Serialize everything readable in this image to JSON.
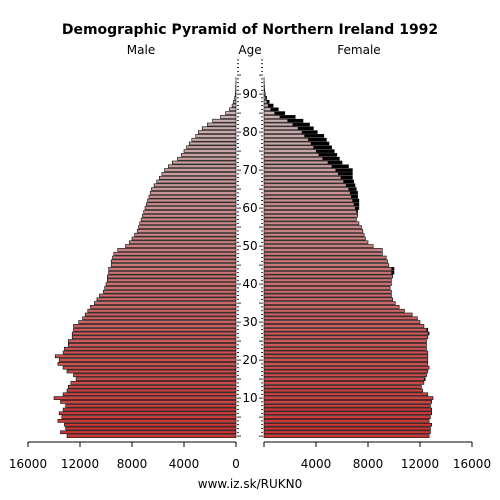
{
  "chart_data": {
    "type": "bar",
    "subtype": "population-pyramid",
    "title": "Demographic Pyramid of Northern Ireland 1992",
    "left_label": "Male",
    "center_label": "Age",
    "right_label": "Female",
    "footer": "www.iz.sk/RUKN0",
    "x_max": 16000,
    "x_ticks": [
      "16000",
      "12000",
      "8000",
      "4000",
      "0",
      "4000",
      "8000",
      "12000",
      "16000"
    ],
    "age_ticks": [
      "10",
      "20",
      "30",
      "40",
      "50",
      "60",
      "70",
      "80",
      "90"
    ],
    "ages": [
      0,
      1,
      2,
      3,
      4,
      5,
      6,
      7,
      8,
      9,
      10,
      11,
      12,
      13,
      14,
      15,
      16,
      17,
      18,
      19,
      20,
      21,
      22,
      23,
      24,
      25,
      26,
      27,
      28,
      29,
      30,
      31,
      32,
      33,
      34,
      35,
      36,
      37,
      38,
      39,
      40,
      41,
      42,
      43,
      44,
      45,
      46,
      47,
      48,
      49,
      50,
      51,
      52,
      53,
      54,
      55,
      56,
      57,
      58,
      59,
      60,
      61,
      62,
      63,
      64,
      65,
      66,
      67,
      68,
      69,
      70,
      71,
      72,
      73,
      74,
      75,
      76,
      77,
      78,
      79,
      80,
      81,
      82,
      83,
      84,
      85,
      86,
      87,
      88,
      89,
      90,
      91,
      92,
      93,
      94,
      95,
      96,
      97,
      98,
      99
    ],
    "series": [
      {
        "name": "Male",
        "values": [
          13000,
          13500,
          13100,
          13200,
          13700,
          13400,
          13600,
          13300,
          13100,
          13500,
          14000,
          13300,
          13000,
          12900,
          12700,
          12300,
          12500,
          13000,
          13300,
          13700,
          13600,
          13900,
          13300,
          13200,
          12900,
          12900,
          12600,
          12600,
          12500,
          12500,
          12100,
          11800,
          11600,
          11400,
          11200,
          10900,
          10700,
          10500,
          10200,
          10100,
          10000,
          9900,
          9900,
          9800,
          9800,
          9600,
          9600,
          9500,
          9400,
          9100,
          8500,
          8200,
          8000,
          7800,
          7600,
          7500,
          7400,
          7300,
          7200,
          7100,
          7000,
          6900,
          6800,
          6700,
          6600,
          6500,
          6300,
          6100,
          5900,
          5700,
          5500,
          5200,
          4900,
          4500,
          4200,
          4000,
          3800,
          3600,
          3400,
          3100,
          2900,
          2600,
          2200,
          1800,
          1200,
          800,
          500,
          300,
          200,
          100,
          60,
          30,
          20,
          10,
          5,
          0,
          0,
          0,
          0,
          0
        ]
      },
      {
        "name": "Female",
        "values": [
          12700,
          12800,
          12800,
          12900,
          12700,
          12800,
          12900,
          12900,
          12800,
          12900,
          13000,
          12600,
          12200,
          12100,
          12300,
          12400,
          12500,
          12600,
          12700,
          12600,
          12600,
          12600,
          12600,
          12500,
          12500,
          12500,
          12600,
          12700,
          12600,
          12300,
          12000,
          11800,
          11400,
          10800,
          10400,
          10100,
          9900,
          9800,
          9800,
          9700,
          9800,
          9800,
          9900,
          10000,
          10000,
          9600,
          9500,
          9400,
          9100,
          9100,
          8400,
          8000,
          7800,
          7700,
          7600,
          7500,
          7300,
          7100,
          7200,
          7200,
          7300,
          7300,
          7300,
          7200,
          7200,
          7100,
          7000,
          6900,
          6800,
          6800,
          6800,
          6500,
          6000,
          5800,
          5600,
          5400,
          5200,
          5000,
          4800,
          4600,
          4100,
          3800,
          3500,
          3000,
          2400,
          1600,
          1100,
          700,
          400,
          200,
          100,
          60,
          30,
          15,
          5,
          0,
          0,
          0,
          0,
          0
        ]
      }
    ],
    "colors": {
      "gradient_bottom": "#cc3333",
      "gradient_top": "#c9b3b3",
      "bar_outline": "#000000",
      "surplus": "#000000"
    }
  }
}
